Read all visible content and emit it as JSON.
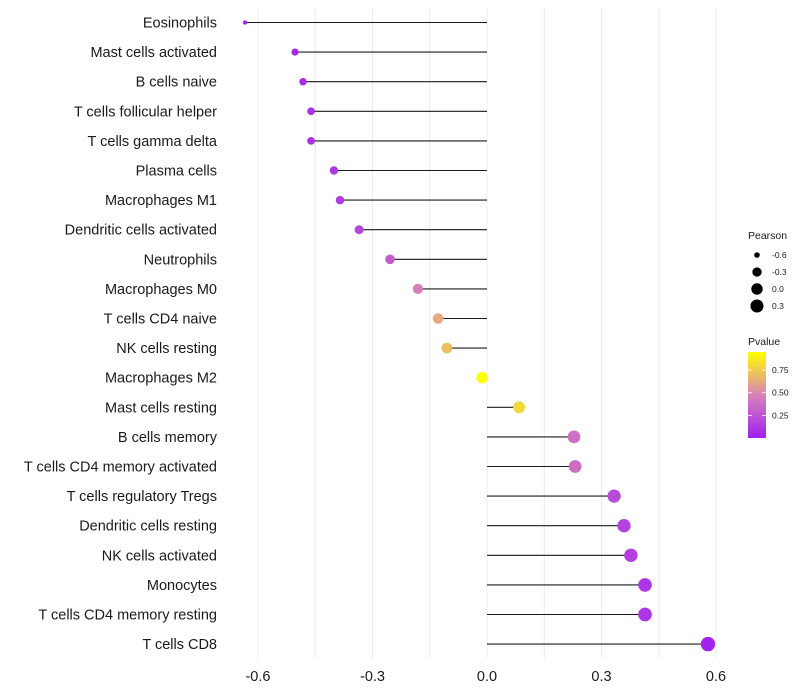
{
  "chart_data": {
    "type": "scatter",
    "subtype": "lollipop",
    "title": "",
    "xlabel": "",
    "ylabel": "",
    "xlim": [
      -0.68,
      0.63
    ],
    "xticks": [
      -0.6,
      -0.3,
      0.0,
      0.3,
      0.6
    ],
    "xtick_labels": [
      "-0.6",
      "-0.3",
      "0.0",
      "0.3",
      "0.6"
    ],
    "grid": true,
    "categories": [
      "Eosinophils",
      "Mast cells activated",
      "B cells naive",
      "T cells follicular helper",
      "T cells gamma delta",
      "Plasma cells",
      "Macrophages M1",
      "Dendritic cells activated",
      "Neutrophils",
      "Macrophages M0",
      "T cells CD4 naive",
      "NK cells resting",
      "Macrophages M2",
      "Mast cells resting",
      "B cells memory",
      "T cells CD4 memory activated",
      "T cells regulatory  Tregs ",
      "Dendritic cells resting",
      "NK cells activated",
      "Monocytes",
      "T cells CD4 memory resting",
      "T cells CD8"
    ],
    "pearson": [
      -0.634,
      -0.503,
      -0.482,
      -0.461,
      -0.461,
      -0.401,
      -0.385,
      -0.335,
      -0.254,
      -0.181,
      -0.128,
      -0.105,
      -0.013,
      0.084,
      0.228,
      0.231,
      0.333,
      0.359,
      0.377,
      0.414,
      0.414,
      0.579
    ],
    "pvalue": [
      0.01,
      0.05,
      0.06,
      0.08,
      0.08,
      0.12,
      0.14,
      0.18,
      0.3,
      0.45,
      0.62,
      0.7,
      0.98,
      0.8,
      0.38,
      0.37,
      0.2,
      0.17,
      0.15,
      0.1,
      0.1,
      0.02
    ],
    "legend": {
      "placement": "right",
      "size": {
        "title": "Pearson",
        "breaks": [
          -0.6,
          -0.3,
          0.0,
          0.3
        ],
        "labels": [
          "-0.6",
          "-0.3",
          "0.0",
          "0.3"
        ]
      },
      "color": {
        "title": "Pvalue",
        "breaks": [
          0.25,
          0.5,
          0.75
        ],
        "labels": [
          "0.25",
          "0.50",
          "0.75"
        ],
        "range": [
          0.0,
          0.95
        ],
        "low_color": "#a020f0",
        "mid_color": "#d883b8",
        "high_color": "#ffff00"
      }
    }
  }
}
